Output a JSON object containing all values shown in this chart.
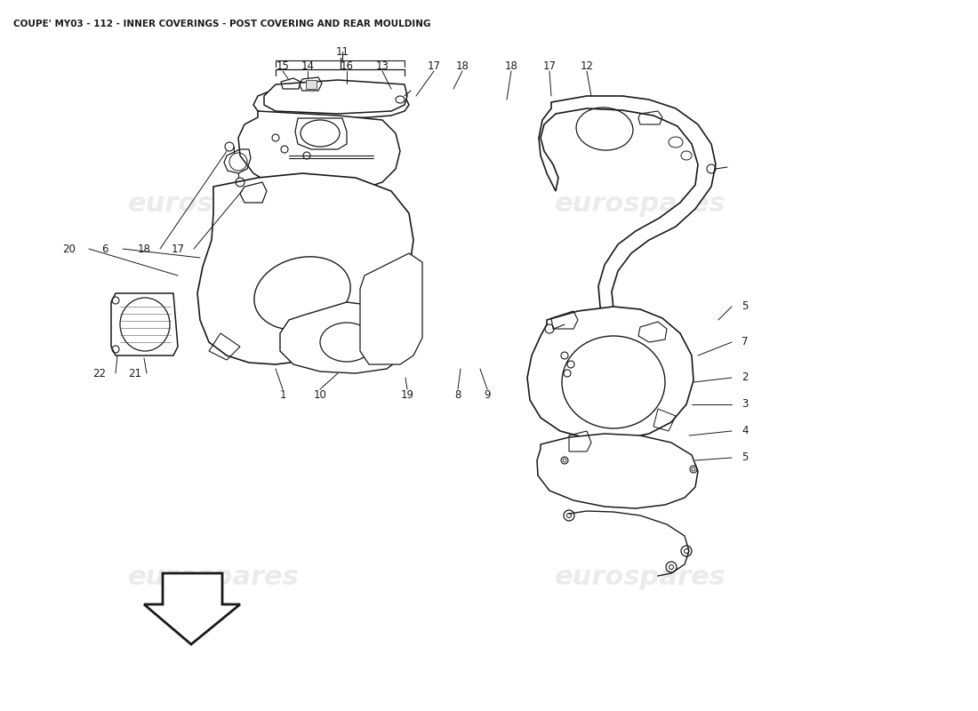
{
  "title": "COUPE' MY03 - 112 - INNER COVERINGS - POST COVERING AND REAR MOULDING",
  "title_fontsize": 7.5,
  "bg_color": "#ffffff",
  "watermark_text": "eurospares",
  "line_color": "#1a1a1a",
  "label_fontsize": 8.5
}
